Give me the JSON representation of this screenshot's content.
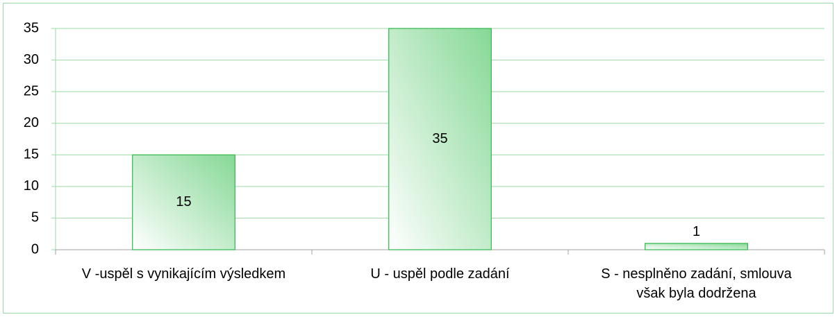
{
  "chart_data": {
    "type": "bar",
    "categories": [
      "V -uspěl s vynikajícím výsledkem",
      "U - uspěl podle zadání",
      "S - nesplněno zadání, smlouva však byla dodržena"
    ],
    "values": [
      15,
      35,
      1
    ],
    "color": "#86d896",
    "ylim": [
      0,
      35
    ],
    "yticks": [
      0,
      5,
      10,
      15,
      20,
      25,
      30,
      35
    ],
    "grid": true
  }
}
